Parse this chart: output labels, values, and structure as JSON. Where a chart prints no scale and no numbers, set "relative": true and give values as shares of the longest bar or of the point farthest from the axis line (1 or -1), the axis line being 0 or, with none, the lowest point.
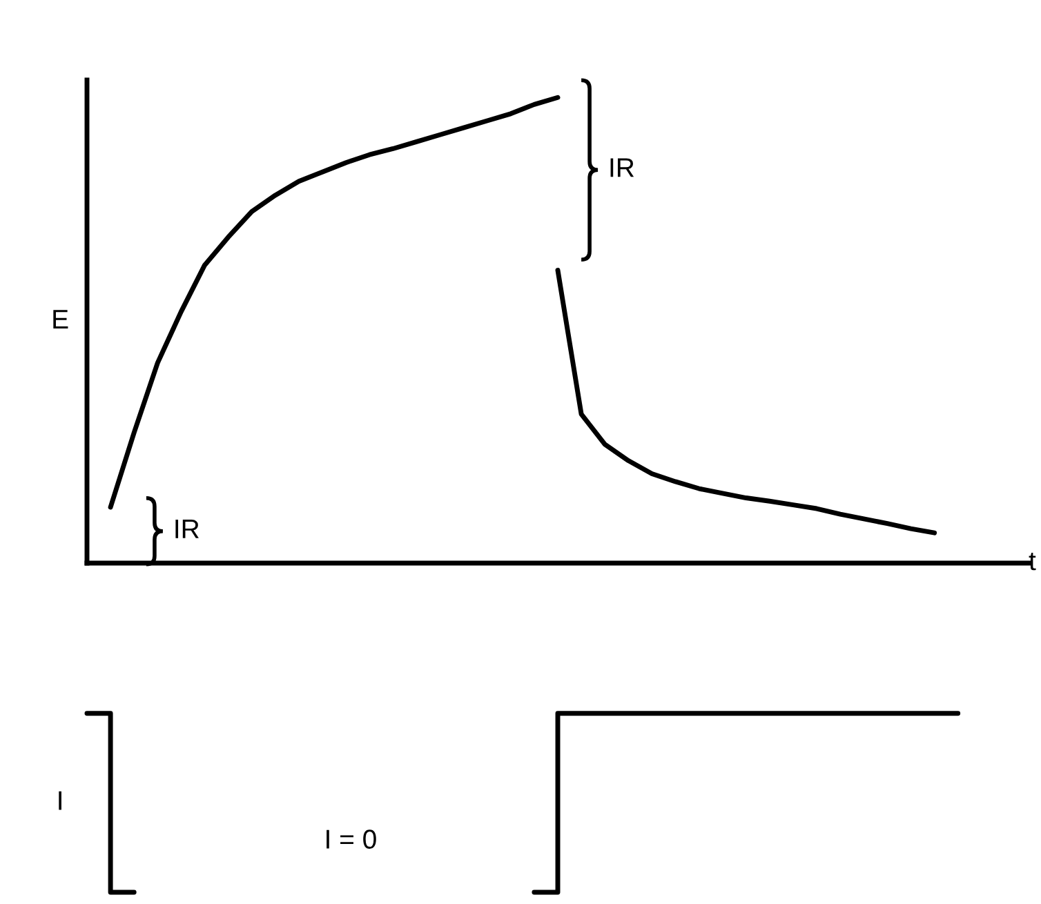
{
  "chart_data": [
    {
      "type": "line",
      "relative": true,
      "xlabel": "t",
      "ylabel": "E",
      "tick_labels": false,
      "categories": [
        null,
        null,
        null,
        null,
        null,
        null,
        null,
        null,
        null,
        null,
        null,
        null,
        null,
        null,
        null,
        null,
        null,
        null,
        null,
        null,
        null,
        null,
        null,
        null,
        null,
        null,
        null,
        null,
        null,
        null,
        null,
        null,
        null,
        null,
        null,
        null,
        null,
        null,
        null,
        null,
        null
      ],
      "series": [
        {
          "color": "#000000",
          "values": [
            null,
            0.12,
            0.28,
            0.43,
            0.54,
            0.64,
            0.7,
            0.755,
            0.79,
            0.82,
            0.84,
            0.86,
            0.877,
            0.89,
            0.905,
            0.92,
            0.935,
            0.95,
            0.965,
            0.985,
            1,
            null,
            null,
            null,
            null,
            null,
            null,
            null,
            null,
            null,
            null,
            null,
            null,
            null,
            null,
            null,
            null,
            null,
            null,
            null,
            null
          ]
        },
        {
          "color": "#000000",
          "values": [
            null,
            null,
            null,
            null,
            null,
            null,
            null,
            null,
            null,
            null,
            null,
            null,
            null,
            null,
            null,
            null,
            null,
            null,
            null,
            null,
            0.629,
            0.32,
            0.255,
            0.22,
            0.192,
            0.175,
            0.16,
            0.15,
            0.14,
            0.133,
            0.125,
            0.117,
            0.105,
            0.095,
            0.085,
            0.074,
            0.065,
            null,
            null,
            null,
            null
          ]
        }
      ],
      "annotations": [
        "IR",
        "IR"
      ]
    },
    {
      "type": "step",
      "relative": true,
      "ylabel": "I",
      "tick_labels": false,
      "categories": [
        null,
        null,
        null,
        null,
        null,
        null,
        null,
        null,
        null,
        null,
        null,
        null,
        null,
        null,
        null,
        null,
        null,
        null,
        null,
        null,
        null,
        null,
        null,
        null,
        null,
        null,
        null,
        null,
        null,
        null,
        null,
        null,
        null,
        null,
        null,
        null,
        null,
        null,
        null,
        null,
        null
      ],
      "series": [
        {
          "color": "#000000",
          "values": [
            1,
            1,
            0,
            null,
            null,
            null,
            null,
            null,
            null,
            null,
            null,
            null,
            null,
            null,
            null,
            null,
            null,
            null,
            null,
            null,
            0,
            1,
            1,
            1,
            1,
            1,
            1,
            1,
            1,
            1,
            1,
            1,
            1,
            1,
            1,
            1,
            1,
            1,
            null,
            null,
            null
          ]
        }
      ],
      "annotations": [
        "I = 0"
      ]
    }
  ]
}
